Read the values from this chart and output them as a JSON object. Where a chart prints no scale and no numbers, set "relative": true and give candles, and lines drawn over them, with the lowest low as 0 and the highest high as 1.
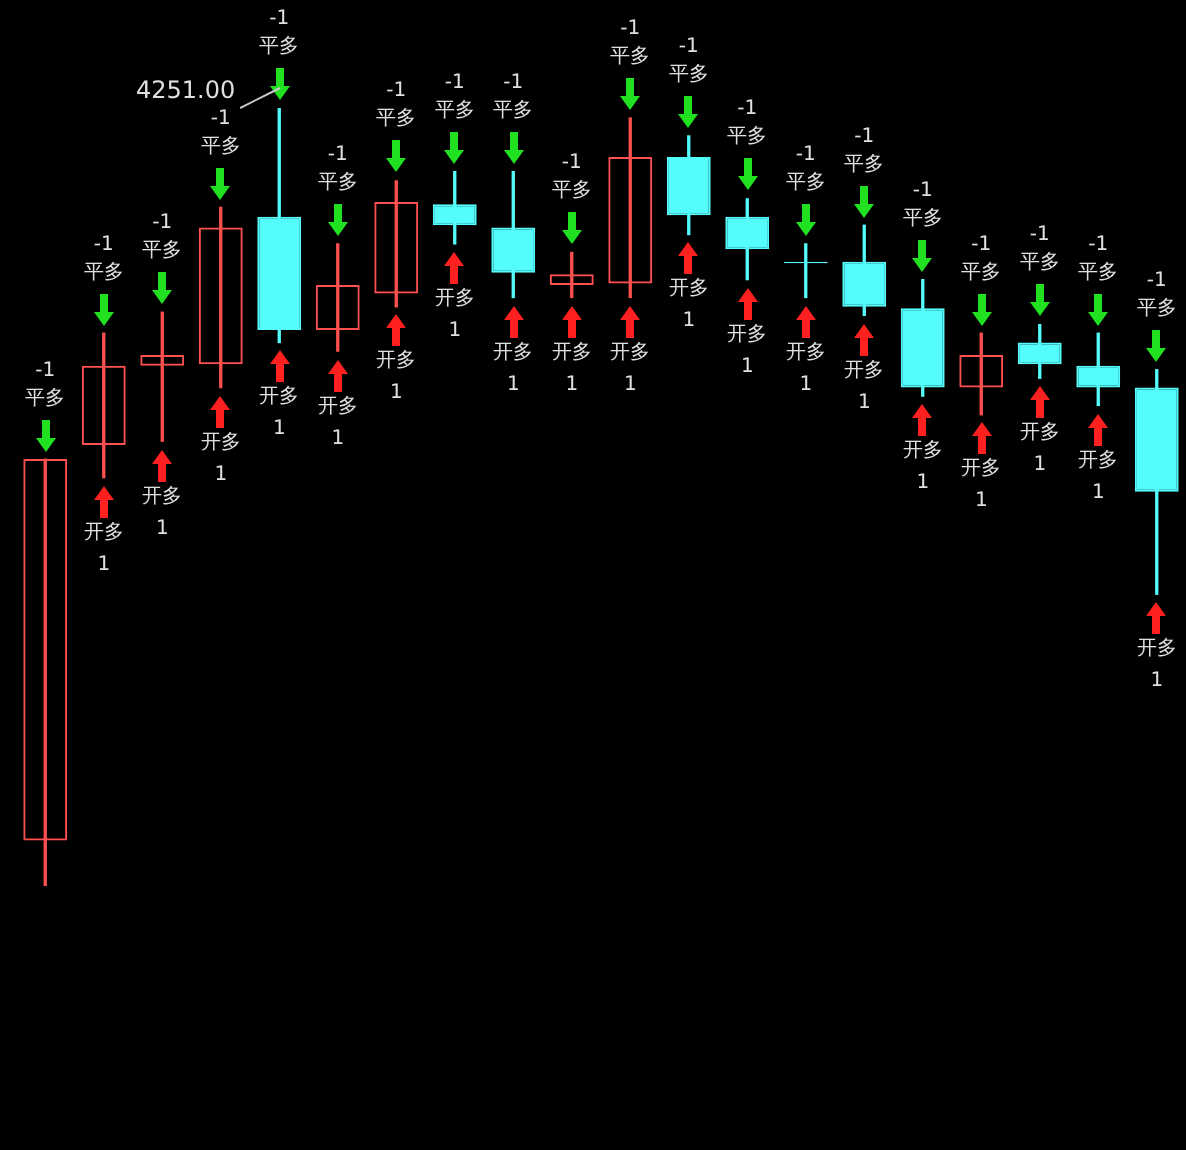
{
  "chart_data": {
    "type": "candlestick",
    "relative": true,
    "categories": [
      null,
      null,
      null,
      null,
      null,
      null,
      null,
      null,
      null,
      null,
      null,
      null,
      null,
      null,
      null,
      null,
      null,
      null,
      null,
      null
    ],
    "ohlc": [
      [
        0.058,
        0.549,
        0,
        0.549
      ],
      [
        0.567,
        0.711,
        0.525,
        0.669
      ],
      [
        0.669,
        0.738,
        0.572,
        0.683
      ],
      [
        0.671,
        0.873,
        0.641,
        0.847
      ],
      [
        0.861,
        1,
        0.699,
        0.715
      ],
      [
        0.715,
        0.826,
        0.688,
        0.773
      ],
      [
        0.762,
        0.907,
        0.745,
        0.88
      ],
      [
        0.877,
        0.919,
        0.826,
        0.85
      ],
      [
        0.847,
        0.919,
        0.757,
        0.789
      ],
      [
        0.773,
        0.815,
        0.757,
        0.787
      ],
      [
        0.775,
        0.988,
        0.757,
        0.938
      ],
      [
        0.938,
        0.965,
        0.838,
        0.863
      ],
      [
        0.861,
        0.884,
        0.78,
        0.819
      ],
      [
        0.803,
        0.826,
        0.757,
        0.801
      ],
      [
        0.803,
        0.85,
        0.734,
        0.745
      ],
      [
        0.743,
        0.78,
        0.63,
        0.641
      ],
      [
        0.641,
        0.711,
        0.606,
        0.683
      ],
      [
        0.699,
        0.722,
        0.653,
        0.671
      ],
      [
        0.669,
        0.711,
        0.618,
        0.641
      ],
      [
        0.641,
        0.664,
        0.375,
        0.507
      ]
    ],
    "annotations": [
      "4251.00",
      "-1",
      "平多",
      "-1",
      "平多",
      "开多",
      "1",
      "-1",
      "平多",
      "开多",
      "1",
      "-1",
      "平多",
      "开多",
      "1",
      "-1",
      "平多",
      "开多",
      "1",
      "-1",
      "平多",
      "开多",
      "1",
      "-1",
      "平多",
      "开多",
      "1",
      "-1",
      "平多",
      "开多",
      "1",
      "-1",
      "平多",
      "开多",
      "1",
      "-1",
      "平多",
      "开多",
      "1",
      "-1",
      "平多",
      "开多",
      "1",
      "-1",
      "平多",
      "开多",
      "1",
      "-1",
      "平多",
      "开多",
      "1",
      "-1",
      "平多",
      "开多",
      "1",
      "-1",
      "平多",
      "开多",
      "1",
      "-1",
      "平多",
      "开多",
      "1",
      "-1",
      "平多",
      "开多",
      "1",
      "-1",
      "平多",
      "开多",
      "1",
      "-1",
      "平多",
      "开多",
      "1",
      "-1",
      "平多",
      "开多",
      "1"
    ]
  }
}
